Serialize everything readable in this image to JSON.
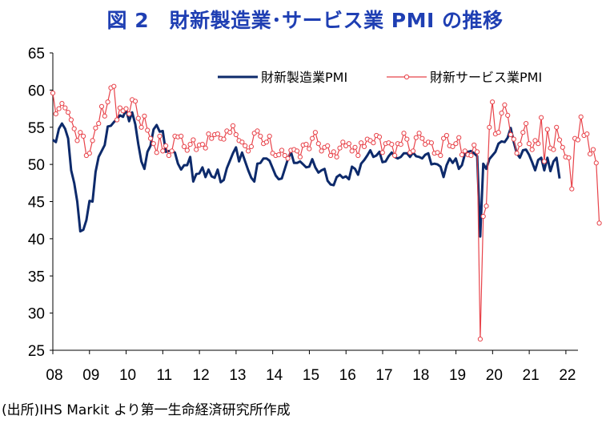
{
  "title": "図 2　財新製造業･サービス業 PMI の推移",
  "source_note": "(出所)IHS Markit より第一生命経済研究所作成",
  "colors": {
    "manufacturing": "#0d2a6b",
    "services": "#e8434a",
    "axis": "#000000",
    "title": "#1f3fb3"
  },
  "chart_data": {
    "type": "line",
    "title": "図 2　財新製造業･サービス業 PMI の推移",
    "xlabel": "",
    "ylabel": "",
    "ylim": [
      25,
      65
    ],
    "yticks": [
      "25",
      "30",
      "35",
      "40",
      "45",
      "50",
      "55",
      "60",
      "65"
    ],
    "xlim": [
      2008.0,
      2022.33
    ],
    "xticks": [
      "08",
      "09",
      "10",
      "11",
      "12",
      "13",
      "14",
      "15",
      "16",
      "17",
      "18",
      "19",
      "20",
      "21",
      "22"
    ],
    "grid": false,
    "legend_position": "top-right",
    "series": [
      {
        "name": "財新製造業PMI",
        "x_start": 2008.0,
        "step": 0.0833,
        "values": [
          53.3,
          53.0,
          54.8,
          55.5,
          54.8,
          53.5,
          49.2,
          47.5,
          45.0,
          41.0,
          41.2,
          42.5,
          45.1,
          45.0,
          49.0,
          51.0,
          51.8,
          52.6,
          55.1,
          55.2,
          55.7,
          56.1,
          56.6,
          56.4,
          57.4,
          55.8,
          57.0,
          55.4,
          52.7,
          50.4,
          49.4,
          51.7,
          52.5,
          54.7,
          55.3,
          54.4,
          54.5,
          51.7,
          51.8,
          51.8,
          51.6,
          50.1,
          49.3,
          49.9,
          49.9,
          51.0,
          47.7,
          48.7,
          48.8,
          49.6,
          48.3,
          49.3,
          48.4,
          48.2,
          49.3,
          47.6,
          47.9,
          49.5,
          50.5,
          51.5,
          52.3,
          50.4,
          51.6,
          50.4,
          49.2,
          48.2,
          47.7,
          50.1,
          50.2,
          50.8,
          50.8,
          50.5,
          49.5,
          48.5,
          48.0,
          48.1,
          49.4,
          50.7,
          51.7,
          50.2,
          50.2,
          50.4,
          50.0,
          49.6,
          49.7,
          50.7,
          49.6,
          48.9,
          49.2,
          49.4,
          47.8,
          47.3,
          47.2,
          48.3,
          48.6,
          48.2,
          48.4,
          48.0,
          49.7,
          49.4,
          48.6,
          50.1,
          50.6,
          51.2,
          51.9,
          51.0,
          51.2,
          51.7,
          50.3,
          50.4,
          51.1,
          51.6,
          51.0,
          50.8,
          51.0,
          51.5,
          51.5,
          51.0,
          51.6,
          51.1,
          51.0,
          50.8,
          51.3,
          51.5,
          50.0,
          50.1,
          50.0,
          49.7,
          48.3,
          49.9,
          50.8,
          50.2,
          50.8,
          49.4,
          49.9,
          51.4,
          51.7,
          51.8,
          51.5,
          51.1,
          40.3,
          50.1,
          49.4,
          50.7,
          51.2,
          51.7,
          52.8,
          53.1,
          53.0,
          53.6,
          54.9,
          53.0,
          51.5,
          50.9,
          51.9,
          52.0,
          51.3,
          50.3,
          49.2,
          50.6,
          50.9,
          49.2,
          50.9,
          49.1,
          50.4,
          50.9,
          48.1
        ],
        "color": "#0d2a6b"
      },
      {
        "name": "財新サービス業PMI",
        "x_start": 2008.0,
        "step": 0.0833,
        "values": [
          59.6,
          56.8,
          57.5,
          58.2,
          57.6,
          57.0,
          56.0,
          54.8,
          53.2,
          54.3,
          53.8,
          51.2,
          51.5,
          53.2,
          54.9,
          55.5,
          57.8,
          56.5,
          58.4,
          60.3,
          60.5,
          56.0,
          57.6,
          57.2,
          57.5,
          56.8,
          58.7,
          58.5,
          56.2,
          55.0,
          56.5,
          54.6,
          53.5,
          52.8,
          51.6,
          53.8,
          51.8,
          52.5,
          51.2,
          51.8,
          53.8,
          53.7,
          53.8,
          52.4,
          51.9,
          52.7,
          53.3,
          52.0,
          52.6,
          52.7,
          52.2,
          54.1,
          53.5,
          54.0,
          54.1,
          53.5,
          53.4,
          54.5,
          54.3,
          55.2,
          54.0,
          53.2,
          53.0,
          52.5,
          51.8,
          52.4,
          54.2,
          54.5,
          53.8,
          52.8,
          53.0,
          53.8,
          51.5,
          51.2,
          51.3,
          51.9,
          51.2,
          50.8,
          51.9,
          52.0,
          51.8,
          51.0,
          52.6,
          52.7,
          52.1,
          53.5,
          54.3,
          52.8,
          51.8,
          52.3,
          52.5,
          51.2,
          51.7,
          51.0,
          52.2,
          53.0,
          52.5,
          52.8,
          51.8,
          52.3,
          51.2,
          52.9,
          52.4,
          53.4,
          53.2,
          52.9,
          53.9,
          53.7,
          51.6,
          52.8,
          52.9,
          52.7,
          51.2,
          52.8,
          52.7,
          54.2,
          53.4,
          51.6,
          51.8,
          53.6,
          54.2,
          53.5,
          52.7,
          53.0,
          52.9,
          51.5,
          51.6,
          51.2,
          53.5,
          53.9,
          52.5,
          52.4,
          52.8,
          53.6,
          51.3,
          51.8,
          51.3,
          51.2,
          52.6,
          51.7,
          26.5,
          43.0,
          44.4,
          55.0,
          58.4,
          54.1,
          54.3,
          56.9,
          58.0,
          56.6,
          54.0,
          53.4,
          51.5,
          52.7,
          54.3,
          55.5,
          52.8,
          52.0,
          53.2,
          52.8,
          56.3,
          50.4,
          54.7,
          52.2,
          52.0,
          55.0,
          53.3,
          52.3,
          51.0,
          50.9,
          46.7,
          53.5,
          53.3,
          56.4,
          53.9,
          54.1,
          51.4,
          52.0,
          50.2,
          42.1
        ],
        "color": "#e8434a"
      }
    ]
  }
}
